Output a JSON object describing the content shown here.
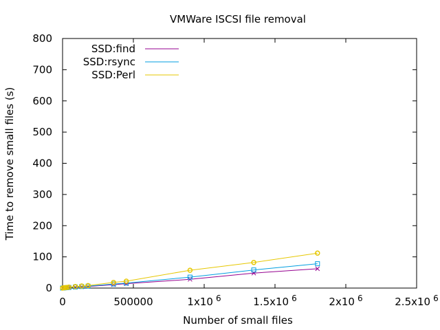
{
  "chart_data": {
    "type": "line",
    "title": "VMWare ISCSI file removal",
    "xlabel": "Number of small files",
    "ylabel": "Time to remove small files (s)",
    "xlim": [
      0,
      2500000
    ],
    "ylim": [
      0,
      800
    ],
    "grid": false,
    "legend_position": "top-left",
    "x_ticks": [
      {
        "value": 0,
        "label": "0"
      },
      {
        "value": 500000,
        "label": "500000"
      },
      {
        "value": 1000000,
        "label": "1x10",
        "exp": "6"
      },
      {
        "value": 1500000,
        "label": "1.5x10",
        "exp": "6"
      },
      {
        "value": 2000000,
        "label": "2x10",
        "exp": "6"
      },
      {
        "value": 2500000,
        "label": "2.5x10",
        "exp": "6"
      }
    ],
    "y_ticks": [
      {
        "value": 0,
        "label": "0"
      },
      {
        "value": 100,
        "label": "100"
      },
      {
        "value": 200,
        "label": "200"
      },
      {
        "value": 300,
        "label": "300"
      },
      {
        "value": 400,
        "label": "400"
      },
      {
        "value": 500,
        "label": "500"
      },
      {
        "value": 600,
        "label": "600"
      },
      {
        "value": 700,
        "label": "700"
      },
      {
        "value": 800,
        "label": "800"
      }
    ],
    "x": [
      0,
      10000,
      20000,
      30000,
      45000,
      90000,
      135000,
      180000,
      360000,
      450000,
      900000,
      1350000,
      1800000
    ],
    "series": [
      {
        "name": "SSD:find",
        "color": "#94008f",
        "marker": "cross",
        "values": [
          0,
          0.5,
          1,
          1.5,
          2,
          3,
          4,
          5,
          11,
          14,
          28,
          48,
          62
        ]
      },
      {
        "name": "SSD:rsync",
        "color": "#009ee0",
        "marker": "square",
        "values": [
          0,
          0.5,
          1,
          1.5,
          2,
          3.5,
          5,
          6,
          13,
          16,
          35,
          58,
          78
        ]
      },
      {
        "name": "SSD:Perl",
        "color": "#e6c700",
        "marker": "circle",
        "values": [
          0,
          1,
          1.5,
          2,
          3,
          5,
          6.5,
          8,
          18,
          22,
          57,
          82,
          112
        ]
      }
    ]
  }
}
